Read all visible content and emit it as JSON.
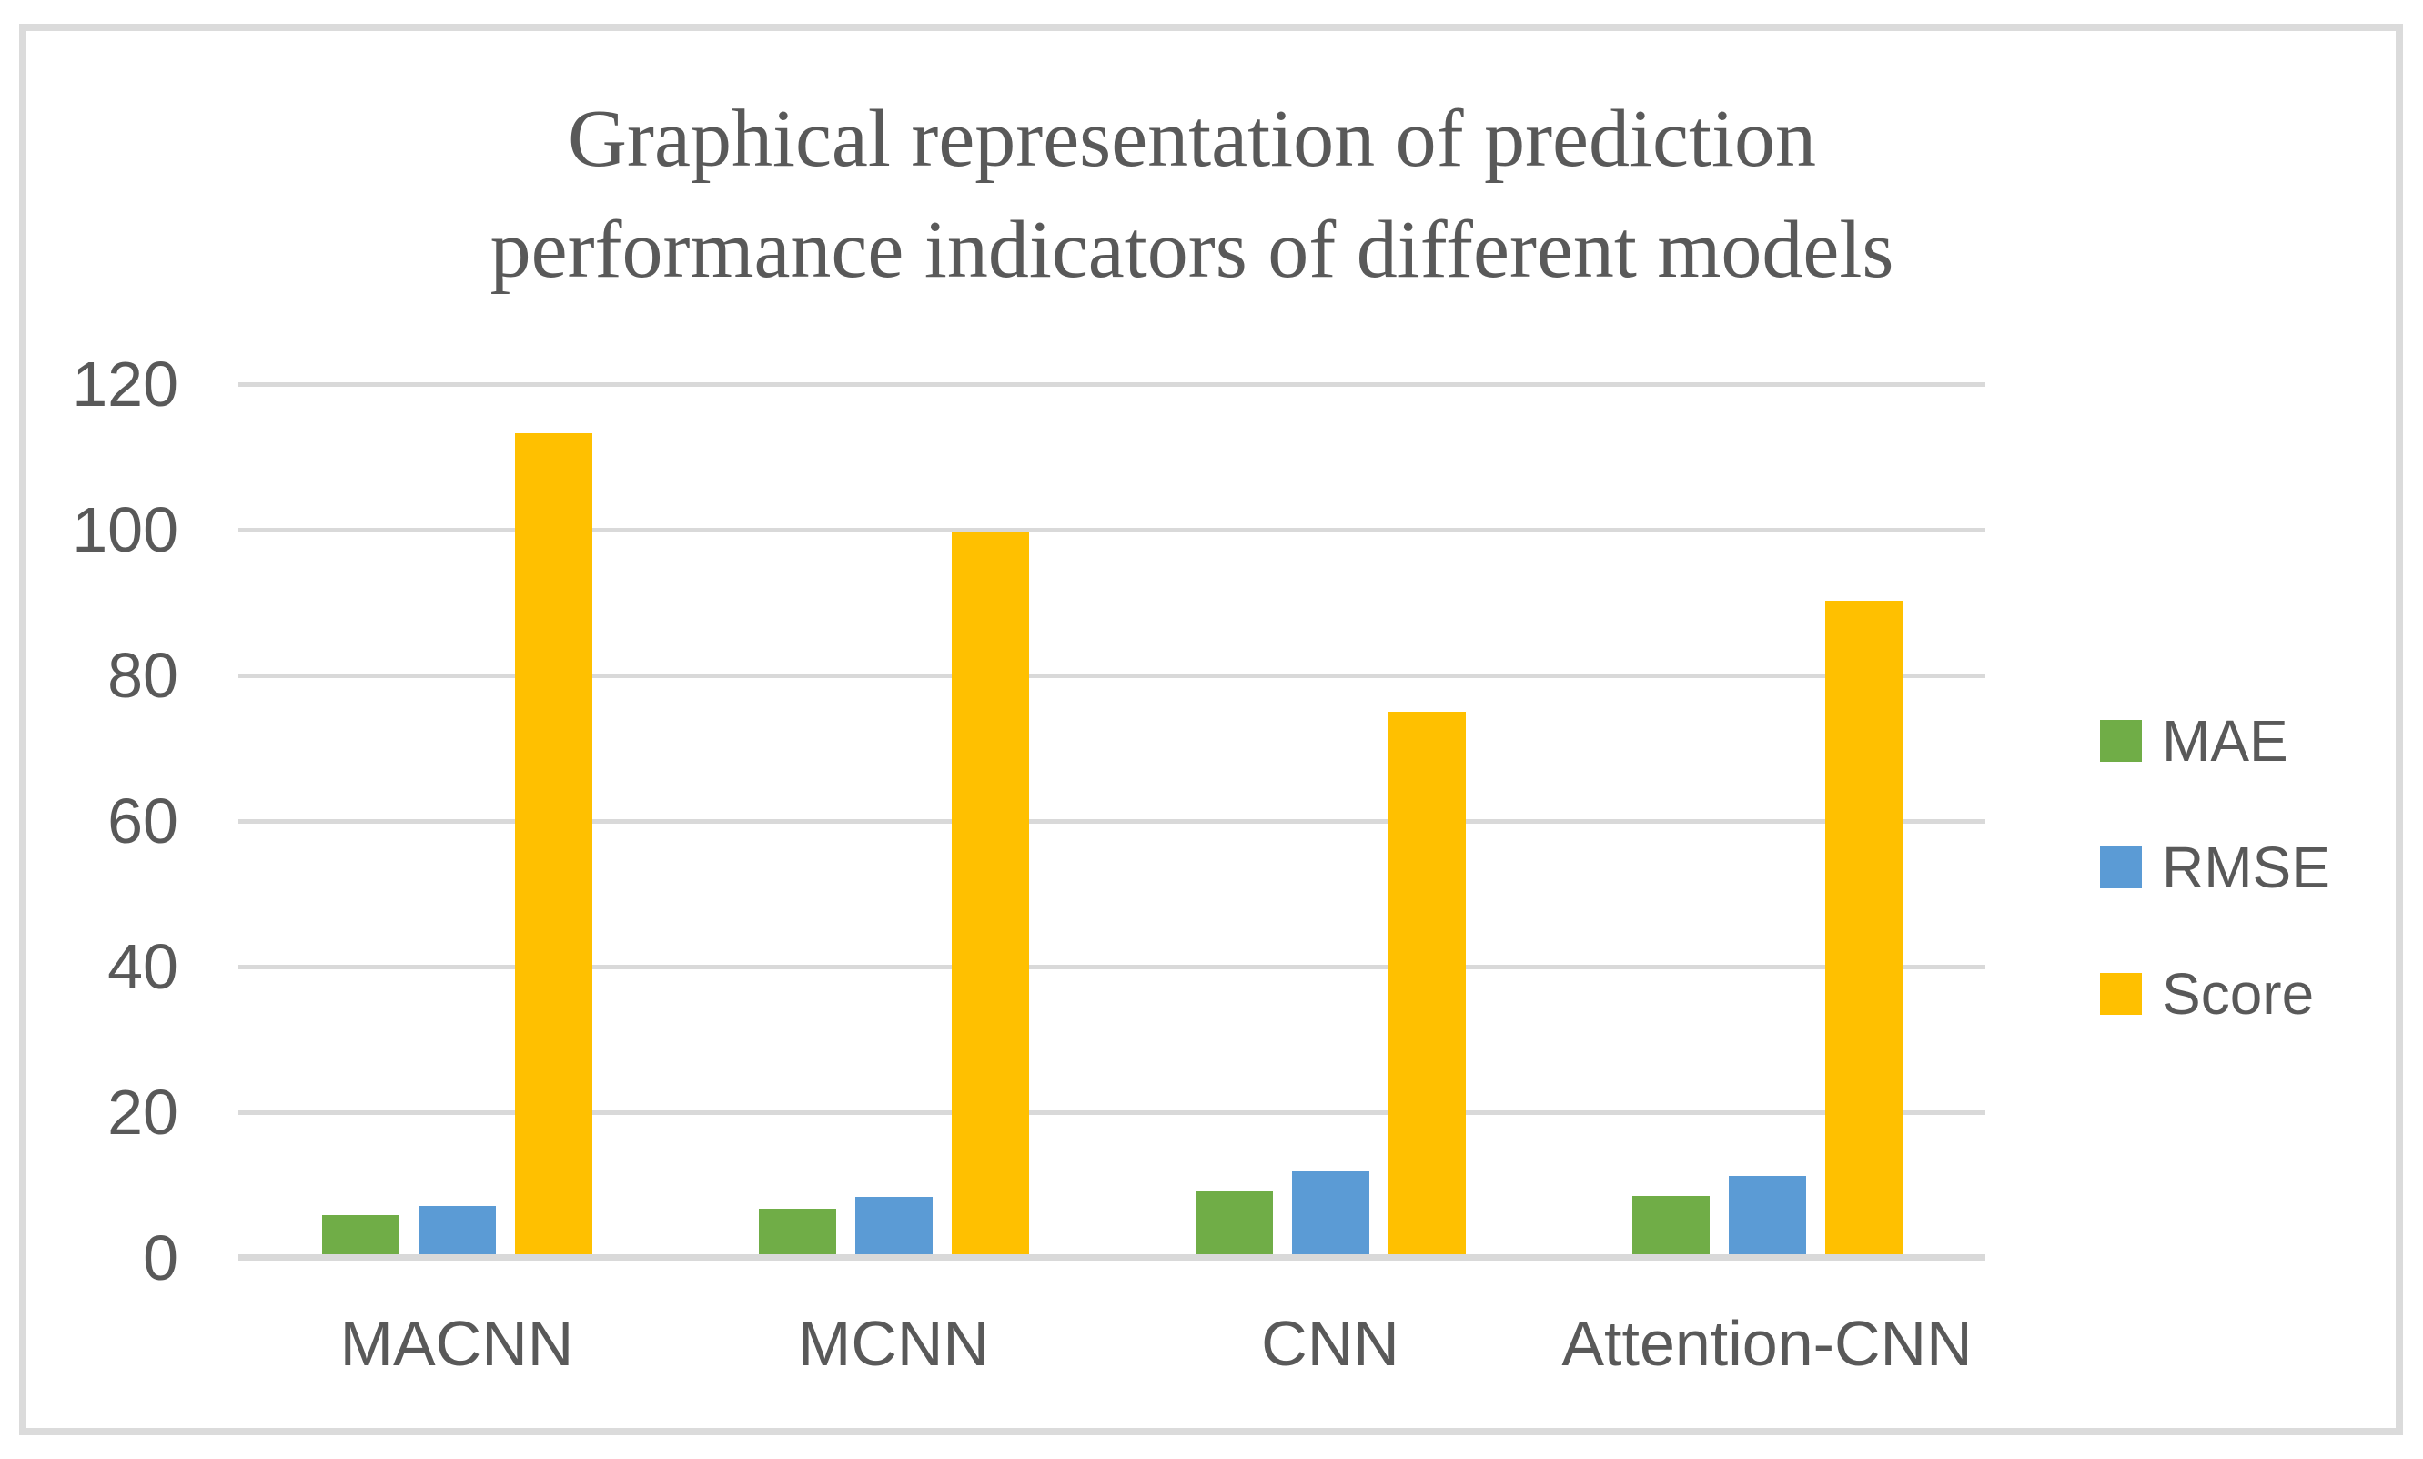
{
  "chart_data": {
    "type": "bar",
    "title": "Graphical representation of prediction performance indicators of different models",
    "title_lines": [
      "Graphical representation of prediction",
      "performance indicators of different models"
    ],
    "categories": [
      "MACNN",
      "MCNN",
      "CNN",
      "Attention-CNN"
    ],
    "series": [
      {
        "name": "MAE",
        "color": "#70AD47",
        "values": [
          5.4,
          6.2,
          8.8,
          8.0
        ]
      },
      {
        "name": "RMSE",
        "color": "#5B9BD5",
        "values": [
          6.6,
          7.9,
          11.4,
          10.7
        ]
      },
      {
        "name": "Score",
        "color": "#FFC000",
        "values": [
          112.7,
          99.2,
          74.5,
          89.7
        ]
      }
    ],
    "xlabel": "",
    "ylabel": "",
    "ylim": [
      0,
      120
    ],
    "yticks": [
      120,
      100,
      80,
      60,
      40,
      20,
      0
    ],
    "grid": true,
    "legend_position": "right",
    "colors": {
      "gridline": "#D9D9D9",
      "axis_text": "#595959",
      "title_text": "#595959",
      "frame_border": "#DBDBDB",
      "background": "#FFFFFF"
    }
  }
}
